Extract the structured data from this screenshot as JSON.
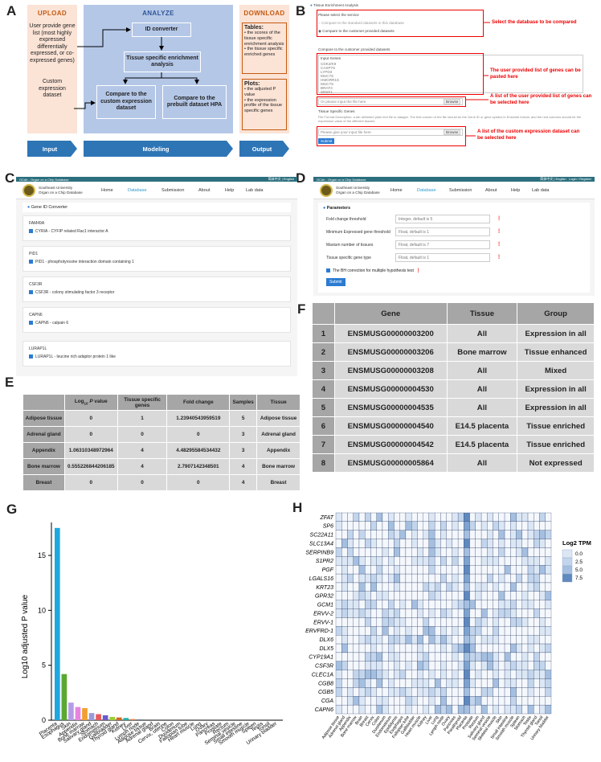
{
  "panel_labels": {
    "a": "A",
    "b": "B",
    "c": "C",
    "d": "D",
    "e": "E",
    "f": "F",
    "g": "G",
    "h": "H"
  },
  "panelA": {
    "upload": {
      "title": "UPLOAD",
      "text1": "User provide gene list (most highly expressed differentially expressed, or co-expressed genes)",
      "text2": "Custom expression dataset"
    },
    "analyze": {
      "title": "ANALYZE",
      "id_converter": "ID converter",
      "tissue_enrich": "Tissue specific enrichment analysis",
      "compare_custom": "Compare to the custom expression dataset",
      "compare_hpa": "Compare to the prebuilt dataset HPA"
    },
    "download": {
      "title": "DOWNLOAD",
      "tables_title": "Tables:",
      "tables_items": "• the scores of the tissue specific enrichment analysis\n• the tissue specific enriched genes",
      "plots_title": "Plots:",
      "plots_items": "• the adjusted P value\n• the expression profile of the tissue specific genes"
    },
    "bottom": {
      "input": "Input",
      "modeling": "Modeling",
      "output": "Output"
    }
  },
  "panelB": {
    "header": "Tissue Enrichment Analysis",
    "select_label": "Please select the service",
    "option1": "Compare to the standard datasets in this database",
    "option2": "Compare to the customer provided datasets",
    "compare_label": "Compare to the customer provided datasets",
    "input_genes": "Input Genes",
    "genes": [
      "CDK2/K9",
      "CASP7S",
      "LYPD3",
      "MUC7S",
      "HMGRR1S",
      "MUC7S",
      "BRAF4",
      "SRSF1"
    ],
    "file1": "Or please input the file here",
    "browse": "Browse",
    "tsg": "Tissue Specific Genes",
    "desc": "File Format Description:  a tab delimited plain text file to dataget. The first column of the file should be the Gene ID or gene symbol in Ensembl format, and the rest columns should be the expression value of the different tissues.",
    "file2": "Please give your input file here",
    "submit": "Submit",
    "ann1": "Select the database to be compared",
    "ann2": "The user provided list of genes can be pasted here",
    "ann3": "A list of the user provided list of genes can be selected here",
    "ann4": "A list of the custom expression dataset can be selected here"
  },
  "site": {
    "topbar": "OCdb - Organ on a Chip Database",
    "lang": "简体中文 | English",
    "login": "Login / Register",
    "name1": "Southeast University",
    "name2": "Organ on a Chip Database",
    "nav": [
      "Home",
      "Database",
      "Submission",
      "About",
      "Help",
      "Lab data"
    ]
  },
  "panelC": {
    "title": "Gene ID Converter",
    "genes": [
      {
        "id": "FAM49A",
        "desc": "CYRIA - CYFIP related Rac1 interactor A"
      },
      {
        "id": "PID1",
        "desc": "PID1 - phosphotyrosine interaction domain containing 1"
      },
      {
        "id": "CSF3R",
        "desc": "CSF3R - colony stimulating factor 3 receptor"
      },
      {
        "id": "CAPN6",
        "desc": "CAPN6 - calpain 6"
      },
      {
        "id": "LURAP1L",
        "desc": "LURAP1L - leucine rich adaptor protein 1 like"
      }
    ]
  },
  "panelD": {
    "title": "Parameters",
    "rows": [
      {
        "label": "Fold change threshold",
        "placeholder": "Integer, default is 5"
      },
      {
        "label": "Minimum Expressed gene threshold",
        "placeholder": "Float, default is 1"
      },
      {
        "label": "Maxium number of tissues",
        "placeholder": "Float, default is 7"
      },
      {
        "label": "Tissue specific gene type",
        "placeholder": "Float, default is 1"
      }
    ],
    "checkbox": "The BH correction for multiple hypothesis test",
    "submit": "Submit"
  },
  "panelE": {
    "headers": [
      "",
      "Log10 P value",
      "Tissue specific genes",
      "Fold change",
      "Samples",
      "Tissue"
    ],
    "rows": [
      [
        "Adipose tissue",
        "0",
        "1",
        "1.23940543959519",
        "5",
        "Adipose tissue"
      ],
      [
        "Adrenal gland",
        "0",
        "0",
        "0",
        "3",
        "Adrenal gland"
      ],
      [
        "Appendix",
        "1.06310348972964",
        "4",
        "4.48295584534432",
        "3",
        "Appendix"
      ],
      [
        "Bone marrow",
        "0.555226844206185",
        "4",
        "2.7907142348501",
        "4",
        "Bone marrow"
      ],
      [
        "Breast",
        "0",
        "0",
        "0",
        "4",
        "Breast"
      ]
    ]
  },
  "panelF": {
    "headers": [
      "",
      "Gene",
      "Tissue",
      "Group"
    ],
    "rows": [
      [
        "1",
        "ENSMUSG00000003200",
        "All",
        "Expression in all"
      ],
      [
        "2",
        "ENSMUSG00000003206",
        "Bone marrow",
        "Tissue enhanced"
      ],
      [
        "3",
        "ENSMUSG00000003208",
        "All",
        "Mixed"
      ],
      [
        "4",
        "ENSMUSG00000004530",
        "All",
        "Expression in all"
      ],
      [
        "5",
        "ENSMUSG00000004535",
        "All",
        "Expression in all"
      ],
      [
        "6",
        "ENSMUSG00000004540",
        "E14.5 placenta",
        "Tissue enriched"
      ],
      [
        "7",
        "ENSMUSG00000004542",
        "E14.5 placenta",
        "Tissue enriched"
      ],
      [
        "8",
        "ENSMUSG00000005864",
        "All",
        "Not expressed"
      ]
    ]
  },
  "chart_data": [
    {
      "type": "bar",
      "ylabel": "Log10 adjusted P value",
      "ylim": [
        0,
        18
      ],
      "yticks": [
        0,
        5,
        10,
        15
      ],
      "categories": [
        "Placenta",
        "Esophagus",
        "Skin",
        "Appendix",
        "Bone marrow",
        "Salivary gland",
        "Stomach",
        "Endometrium",
        "Gallbladder",
        "Thyroid gland",
        "Kidney",
        "Liver",
        "Lymph node",
        "Adipose tissue",
        "Adrenal gland",
        "Brain",
        "Cervix, uterine",
        "Colon",
        "Duodenum",
        "Fallopian tube",
        "Heart muscle",
        "Lung",
        "Ovary",
        "Pancreas",
        "Prostate",
        "Rectum",
        "Seminal vesicle",
        "Small intestine",
        "Smooth muscle",
        "Spleen",
        "Testis",
        "Tonsil",
        "Urinary bladder"
      ],
      "values": [
        17.5,
        4.2,
        1.6,
        1.2,
        1.1,
        0.65,
        0.55,
        0.45,
        0.3,
        0.25,
        0.2,
        0.1,
        0.08,
        0,
        0,
        0,
        0,
        0,
        0,
        0,
        0,
        0,
        0,
        0,
        0,
        0,
        0,
        0,
        0,
        0,
        0,
        0,
        0
      ],
      "colors": [
        "#1fa8e0",
        "#5aa832",
        "#b59ce8",
        "#e884e0",
        "#f0a030",
        "#9a9ad8",
        "#e85a5a",
        "#6a5acd",
        "#9acd32",
        "#d2691e",
        "#20b2aa",
        "#e27f4d",
        "#708090"
      ]
    },
    {
      "type": "heatmap",
      "genes": [
        "ZFAT",
        "SP6",
        "SC22A11",
        "SLC13A4",
        "SERPINB9",
        "S1PR2",
        "PGF",
        "LGALS16",
        "KRT23",
        "GPR32",
        "GCM1",
        "ERVV-2",
        "ERVV-1",
        "ERVFRD-1",
        "DLX6",
        "DLX5",
        "CYP19A1",
        "CSF3R",
        "CLEC1A",
        "CGB8",
        "CGB5",
        "CGA",
        "CAPN6"
      ],
      "tissues": [
        "Adipose tissue",
        "Adrenal gland",
        "Appendix",
        "Bone marrow",
        "Brain",
        "Breast",
        "Cervix",
        "Colon",
        "Duodenum",
        "Endometrium",
        "Epididymis",
        "Esophagus",
        "Fallopian tube",
        "Gallbladder",
        "Heart muscle",
        "Kidney",
        "Liver",
        "Lung",
        "Lymph node",
        "Ovary",
        "Pancreas",
        "Parathyroid",
        "Placenta",
        "Prostate",
        "Rectum",
        "Salivary gland",
        "Seminal vesicle",
        "Skeletal muscle",
        "Skin",
        "Small intestine",
        "Smooth muscle",
        "Spleen",
        "Stomach",
        "Testis",
        "Thyroid gland",
        "Tonsil",
        "Urinary bladder"
      ],
      "legend_title": "Log2 TPM",
      "legend_ticks": [
        "0.0",
        "2.5",
        "5.0",
        "7.5"
      ]
    }
  ]
}
